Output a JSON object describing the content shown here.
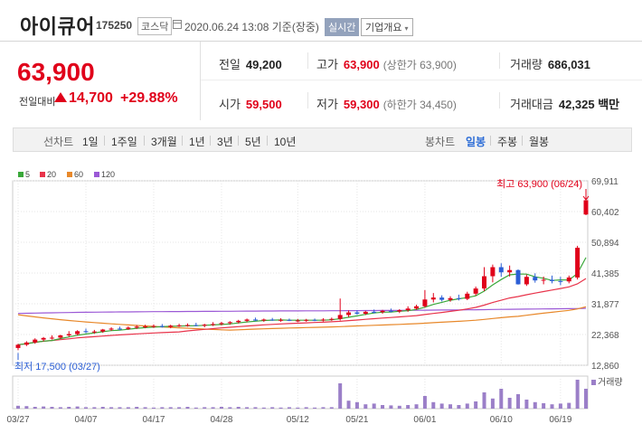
{
  "header": {
    "stock_name": "아이큐어",
    "stock_code": "175250",
    "market": "코스닥",
    "timestamp": "2020.06.24 13:08 기준(장중)",
    "realtime": "실시간",
    "company_info": "기업개요"
  },
  "price": {
    "current": "63,900",
    "change_label": "전일대비",
    "change_amount": "14,700",
    "change_pct": "+29.88%"
  },
  "info": {
    "prev_close_label": "전일",
    "prev_close": "49,200",
    "high_label": "고가",
    "high": "63,900",
    "high_sub": "(상한가 63,900)",
    "volume_label": "거래량",
    "volume": "686,031",
    "open_label": "시가",
    "open": "59,500",
    "low_label": "저가",
    "low": "59,300",
    "low_sub": "(하한가 34,450)",
    "amount_label": "거래대금",
    "amount": "42,325 백만"
  },
  "toolbar": {
    "line_label": "선차트",
    "periods": [
      "1일",
      "1주일",
      "3개월",
      "1년",
      "3년",
      "5년",
      "10년"
    ],
    "candle_label": "봉차트",
    "candles": [
      "일봉",
      "주봉",
      "월봉"
    ],
    "active_candle": "일봉"
  },
  "colors": {
    "up": "#e0001a",
    "down": "#2c5fd6",
    "ma5": "#3aa83a",
    "ma20": "#e8334a",
    "ma60": "#e8882a",
    "ma120": "#9b59d6",
    "volume": "#9b7fc8"
  },
  "chart_data": {
    "type": "candlestick",
    "legend": [
      "5",
      "20",
      "60",
      "120"
    ],
    "y_ticks": [
      "69,911",
      "60,402",
      "50,894",
      "41,385",
      "31,877",
      "22,368",
      "12,860"
    ],
    "ylim": [
      12860,
      69911
    ],
    "x_ticks": [
      "03/27",
      "04/07",
      "04/17",
      "04/28",
      "05/12",
      "05/21",
      "06/01",
      "06/10",
      "06/19"
    ],
    "max_annotation": "최고 63,900 (06/24)",
    "min_annotation": "최저 17,500 (03/27)",
    "volume_label": "거래량",
    "candles": [
      {
        "o": 18200,
        "h": 19500,
        "l": 17500,
        "c": 19200
      },
      {
        "o": 19200,
        "h": 20300,
        "l": 18800,
        "c": 19900
      },
      {
        "o": 19900,
        "h": 21200,
        "l": 19500,
        "c": 20800
      },
      {
        "o": 20800,
        "h": 21600,
        "l": 20200,
        "c": 21300
      },
      {
        "o": 21300,
        "h": 22100,
        "l": 20800,
        "c": 21400
      },
      {
        "o": 21400,
        "h": 22300,
        "l": 21000,
        "c": 22100
      },
      {
        "o": 22100,
        "h": 23400,
        "l": 21700,
        "c": 22500
      },
      {
        "o": 22500,
        "h": 23700,
        "l": 22100,
        "c": 23400
      },
      {
        "o": 23400,
        "h": 24200,
        "l": 22800,
        "c": 23100
      },
      {
        "o": 23100,
        "h": 23800,
        "l": 22600,
        "c": 23300
      },
      {
        "o": 23300,
        "h": 24100,
        "l": 22900,
        "c": 23900
      },
      {
        "o": 23900,
        "h": 24600,
        "l": 23500,
        "c": 24200
      },
      {
        "o": 24200,
        "h": 24800,
        "l": 23700,
        "c": 24100
      },
      {
        "o": 24100,
        "h": 24900,
        "l": 23800,
        "c": 24500
      },
      {
        "o": 24500,
        "h": 25300,
        "l": 24100,
        "c": 24800
      },
      {
        "o": 24800,
        "h": 25400,
        "l": 24300,
        "c": 24900
      },
      {
        "o": 24900,
        "h": 25500,
        "l": 24400,
        "c": 25000
      },
      {
        "o": 25000,
        "h": 25600,
        "l": 24500,
        "c": 24700
      },
      {
        "o": 24700,
        "h": 25400,
        "l": 24300,
        "c": 25100
      },
      {
        "o": 25100,
        "h": 25700,
        "l": 24700,
        "c": 25200
      },
      {
        "o": 25200,
        "h": 25800,
        "l": 24800,
        "c": 25300
      },
      {
        "o": 25300,
        "h": 26000,
        "l": 24900,
        "c": 25100
      },
      {
        "o": 25100,
        "h": 25700,
        "l": 24600,
        "c": 25400
      },
      {
        "o": 25400,
        "h": 26200,
        "l": 25000,
        "c": 25600
      },
      {
        "o": 25600,
        "h": 26300,
        "l": 25200,
        "c": 25900
      },
      {
        "o": 25900,
        "h": 26500,
        "l": 25400,
        "c": 26200
      },
      {
        "o": 26200,
        "h": 26900,
        "l": 25800,
        "c": 26600
      },
      {
        "o": 26600,
        "h": 27300,
        "l": 26200,
        "c": 27000
      },
      {
        "o": 27000,
        "h": 27600,
        "l": 26500,
        "c": 26700
      },
      {
        "o": 26700,
        "h": 27300,
        "l": 26300,
        "c": 27000
      },
      {
        "o": 27000,
        "h": 27500,
        "l": 26600,
        "c": 26800
      },
      {
        "o": 26800,
        "h": 27400,
        "l": 26300,
        "c": 26900
      },
      {
        "o": 26900,
        "h": 27300,
        "l": 26500,
        "c": 26600
      },
      {
        "o": 26600,
        "h": 27200,
        "l": 26200,
        "c": 26700
      },
      {
        "o": 26700,
        "h": 27200,
        "l": 26300,
        "c": 26900
      },
      {
        "o": 26900,
        "h": 27300,
        "l": 26500,
        "c": 26800
      },
      {
        "o": 26800,
        "h": 27400,
        "l": 26400,
        "c": 27000
      },
      {
        "o": 27000,
        "h": 27600,
        "l": 26600,
        "c": 27200
      },
      {
        "o": 27200,
        "h": 33500,
        "l": 26700,
        "c": 28400
      },
      {
        "o": 28400,
        "h": 29800,
        "l": 27800,
        "c": 29200
      },
      {
        "o": 29200,
        "h": 29900,
        "l": 28500,
        "c": 28800
      },
      {
        "o": 28800,
        "h": 29700,
        "l": 28400,
        "c": 29400
      },
      {
        "o": 29400,
        "h": 30100,
        "l": 28900,
        "c": 29300
      },
      {
        "o": 29300,
        "h": 30000,
        "l": 28800,
        "c": 29700
      },
      {
        "o": 29700,
        "h": 30400,
        "l": 29200,
        "c": 29500
      },
      {
        "o": 29500,
        "h": 30200,
        "l": 29000,
        "c": 29900
      },
      {
        "o": 29900,
        "h": 31100,
        "l": 29400,
        "c": 30400
      },
      {
        "o": 30400,
        "h": 31600,
        "l": 30000,
        "c": 31100
      },
      {
        "o": 31100,
        "h": 36100,
        "l": 30700,
        "c": 33200
      },
      {
        "o": 33200,
        "h": 35200,
        "l": 32300,
        "c": 33800
      },
      {
        "o": 33800,
        "h": 34500,
        "l": 32600,
        "c": 33100
      },
      {
        "o": 33100,
        "h": 34200,
        "l": 32500,
        "c": 33600
      },
      {
        "o": 33600,
        "h": 34700,
        "l": 32900,
        "c": 33400
      },
      {
        "o": 33400,
        "h": 35600,
        "l": 33000,
        "c": 35000
      },
      {
        "o": 35000,
        "h": 37200,
        "l": 34400,
        "c": 36600
      },
      {
        "o": 36600,
        "h": 43200,
        "l": 35800,
        "c": 40400
      },
      {
        "o": 40400,
        "h": 44000,
        "l": 38500,
        "c": 43200
      },
      {
        "o": 43200,
        "h": 44400,
        "l": 40200,
        "c": 41600
      },
      {
        "o": 41600,
        "h": 43700,
        "l": 40300,
        "c": 42300
      },
      {
        "o": 42300,
        "h": 42500,
        "l": 37800,
        "c": 37900
      },
      {
        "o": 37900,
        "h": 40900,
        "l": 37400,
        "c": 40200
      },
      {
        "o": 40200,
        "h": 41300,
        "l": 38400,
        "c": 39100
      },
      {
        "o": 39100,
        "h": 40300,
        "l": 37900,
        "c": 39300
      },
      {
        "o": 39300,
        "h": 40600,
        "l": 38200,
        "c": 38900
      },
      {
        "o": 38900,
        "h": 40200,
        "l": 37600,
        "c": 38800
      },
      {
        "o": 38800,
        "h": 40600,
        "l": 38200,
        "c": 40000
      },
      {
        "o": 40000,
        "h": 49800,
        "l": 39400,
        "c": 49200
      },
      {
        "o": 59500,
        "h": 63900,
        "l": 59300,
        "c": 63900
      }
    ],
    "volumes": [
      8,
      7,
      5,
      6,
      5,
      4,
      5,
      6,
      4,
      4,
      5,
      4,
      4,
      4,
      5,
      4,
      3,
      4,
      4,
      4,
      5,
      3,
      4,
      4,
      5,
      4,
      5,
      4,
      4,
      3,
      4,
      3,
      4,
      3,
      4,
      3,
      4,
      4,
      70,
      22,
      18,
      12,
      14,
      10,
      9,
      8,
      10,
      12,
      35,
      18,
      14,
      12,
      10,
      14,
      20,
      45,
      28,
      55,
      30,
      40,
      25,
      18,
      15,
      12,
      14,
      16,
      80,
      55
    ]
  }
}
